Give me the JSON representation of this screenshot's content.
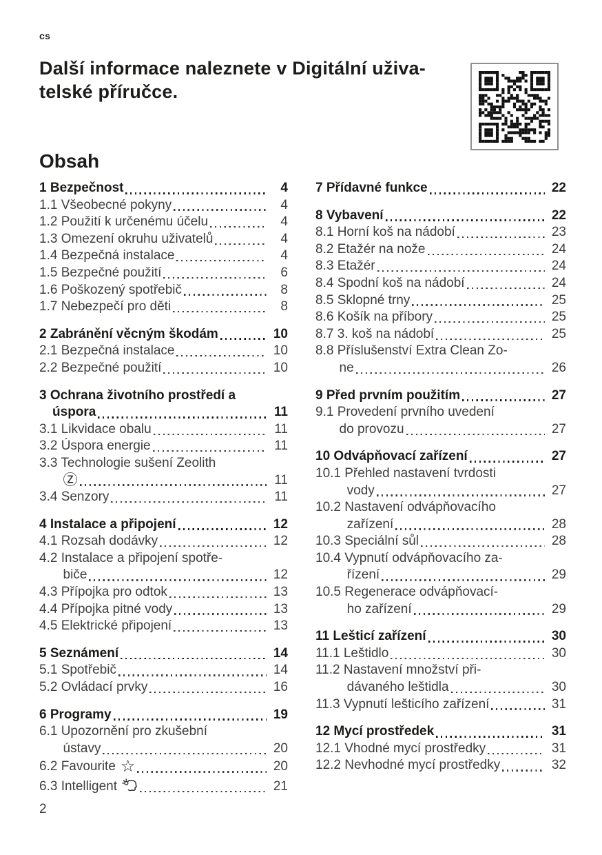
{
  "page": {
    "lang_label": "cs",
    "page_number": "2"
  },
  "header": {
    "title_lines": [
      "Další informace naleznete v Digitální uživa-",
      "telské příručce."
    ],
    "qr_code": "qr-code"
  },
  "contents": {
    "heading": "Obsah",
    "columns": [
      {
        "sections": [
          {
            "entries": [
              {
                "num": "1",
                "lines": [
                  "Bezpečnost"
                ],
                "page": "4",
                "bold": true
              },
              {
                "num": "1.1",
                "lines": [
                  "Všeobecné pokyny"
                ],
                "page": "4"
              },
              {
                "num": "1.2",
                "lines": [
                  "Použití k určenému účelu"
                ],
                "page": "4"
              },
              {
                "num": "1.3",
                "lines": [
                  "Omezení okruhu uživatelů"
                ],
                "page": "4"
              },
              {
                "num": "1.4",
                "lines": [
                  "Bezpečná instalace"
                ],
                "page": "4"
              },
              {
                "num": "1.5",
                "lines": [
                  "Bezpečné použití"
                ],
                "page": "6"
              },
              {
                "num": "1.6",
                "lines": [
                  "Poškozený spotřebič"
                ],
                "page": "8"
              },
              {
                "num": "1.7",
                "lines": [
                  "Nebezpečí pro děti"
                ],
                "page": "8"
              }
            ]
          },
          {
            "entries": [
              {
                "num": "2",
                "lines": [
                  "Zabránění věcným škodám"
                ],
                "page": "10",
                "bold": true
              },
              {
                "num": "2.1",
                "lines": [
                  "Bezpečná instalace"
                ],
                "page": "10"
              },
              {
                "num": "2.2",
                "lines": [
                  "Bezpečné použití"
                ],
                "page": "10"
              }
            ]
          },
          {
            "entries": [
              {
                "num": "3",
                "lines": [
                  "Ochrana životního prostředí a",
                  "úspora"
                ],
                "page": "11",
                "bold": true
              },
              {
                "num": "3.1",
                "lines": [
                  "Likvidace obalu"
                ],
                "page": "11"
              },
              {
                "num": "3.2",
                "lines": [
                  "Úspora energie"
                ],
                "page": "11"
              },
              {
                "num": "3.3",
                "lines": [
                  "Technologie sušení Zeolith",
                  ""
                ],
                "page": "11",
                "icon": {
                  "name": "zeolith-z-icon",
                  "glyph": "Ⓩ",
                  "line": 1
                }
              },
              {
                "num": "3.4",
                "lines": [
                  "Senzory"
                ],
                "page": "11"
              }
            ]
          },
          {
            "entries": [
              {
                "num": "4",
                "lines": [
                  "Instalace a připojení"
                ],
                "page": "12",
                "bold": true
              },
              {
                "num": "4.1",
                "lines": [
                  "Rozsah dodávky"
                ],
                "page": "12"
              },
              {
                "num": "4.2",
                "lines": [
                  "Instalace a připojení spotře-",
                  "biče"
                ],
                "page": "12"
              },
              {
                "num": "4.3",
                "lines": [
                  "Přípojka pro odtok"
                ],
                "page": "13"
              },
              {
                "num": "4.4",
                "lines": [
                  "Přípojka pitné vody"
                ],
                "page": "13"
              },
              {
                "num": "4.5",
                "lines": [
                  "Elektrické připojení"
                ],
                "page": "13"
              }
            ]
          },
          {
            "entries": [
              {
                "num": "5",
                "lines": [
                  "Seznámení"
                ],
                "page": "14",
                "bold": true
              },
              {
                "num": "5.1",
                "lines": [
                  "Spotřebič"
                ],
                "page": "14"
              },
              {
                "num": "5.2",
                "lines": [
                  "Ovládací prvky"
                ],
                "page": "16"
              }
            ]
          },
          {
            "entries": [
              {
                "num": "6",
                "lines": [
                  "Programy"
                ],
                "page": "19",
                "bold": true
              },
              {
                "num": "6.1",
                "lines": [
                  "Upozornění pro zkušební",
                  "ústavy"
                ],
                "page": "20"
              },
              {
                "num": "6.2",
                "lines": [
                  "Favourite"
                ],
                "page": "20",
                "icon": {
                  "name": "favourite-star-icon",
                  "glyph": "☆",
                  "line": 0
                }
              },
              {
                "num": "6.3",
                "lines": [
                  "Intelligent"
                ],
                "page": "21",
                "icon": {
                  "name": "intelligent-icon",
                  "line": 0
                }
              }
            ]
          }
        ]
      },
      {
        "sections": [
          {
            "entries": [
              {
                "num": "7",
                "lines": [
                  "Přídavné funkce"
                ],
                "page": "22",
                "bold": true
              }
            ]
          },
          {
            "entries": [
              {
                "num": "8",
                "lines": [
                  "Vybavení"
                ],
                "page": "22",
                "bold": true
              },
              {
                "num": "8.1",
                "lines": [
                  "Horní koš na nádobí"
                ],
                "page": "23"
              },
              {
                "num": "8.2",
                "lines": [
                  "Etažér na nože"
                ],
                "page": "24"
              },
              {
                "num": "8.3",
                "lines": [
                  "Etažér"
                ],
                "page": "24"
              },
              {
                "num": "8.4",
                "lines": [
                  "Spodní koš na nádobí"
                ],
                "page": "24"
              },
              {
                "num": "8.5",
                "lines": [
                  "Sklopné trny"
                ],
                "page": "25"
              },
              {
                "num": "8.6",
                "lines": [
                  "Košík na příbory"
                ],
                "page": "25"
              },
              {
                "num": "8.7",
                "lines": [
                  "3. koš na nádobí"
                ],
                "page": "25"
              },
              {
                "num": "8.8",
                "lines": [
                  "Příslušenství Extra Clean Zo-",
                  "ne"
                ],
                "page": "26"
              }
            ]
          },
          {
            "entries": [
              {
                "num": "9",
                "lines": [
                  "Před prvním použitím"
                ],
                "page": "27",
                "bold": true
              },
              {
                "num": "9.1",
                "lines": [
                  "Provedení prvního uvedení",
                  "do provozu"
                ],
                "page": "27"
              }
            ]
          },
          {
            "entries": [
              {
                "num": "10",
                "lines": [
                  "Odvápňovací zařízení"
                ],
                "page": "27",
                "bold": true
              },
              {
                "num": "10.1",
                "lines": [
                  "Přehled nastavení tvrdosti",
                  "vody"
                ],
                "page": "27"
              },
              {
                "num": "10.2",
                "lines": [
                  "Nastavení odvápňovacího",
                  "zařízení"
                ],
                "page": "28"
              },
              {
                "num": "10.3",
                "lines": [
                  "Speciální sůl"
                ],
                "page": "28"
              },
              {
                "num": "10.4",
                "lines": [
                  "Vypnutí odvápňovacího za-",
                  "řízení"
                ],
                "page": "29"
              },
              {
                "num": "10.5",
                "lines": [
                  "Regenerace odvápňovací-",
                  "ho zařízení"
                ],
                "page": "29"
              }
            ]
          },
          {
            "entries": [
              {
                "num": "11",
                "lines": [
                  "Lešticí zařízení"
                ],
                "page": "30",
                "bold": true
              },
              {
                "num": "11.1",
                "lines": [
                  "Leštidlo"
                ],
                "page": "30"
              },
              {
                "num": "11.2",
                "lines": [
                  "Nastavení množství při-",
                  "dávaného leštidla"
                ],
                "page": "30"
              },
              {
                "num": "11.3",
                "lines": [
                  "Vypnutí lešticího zařízení"
                ],
                "page": "31"
              }
            ]
          },
          {
            "entries": [
              {
                "num": "12",
                "lines": [
                  "Mycí prostředek"
                ],
                "page": "31",
                "bold": true
              },
              {
                "num": "12.1",
                "lines": [
                  "Vhodné mycí prostředky"
                ],
                "page": "31"
              },
              {
                "num": "12.2",
                "lines": [
                  "Nevhodné mycí prostředky"
                ],
                "page": "32"
              }
            ]
          }
        ]
      }
    ]
  }
}
